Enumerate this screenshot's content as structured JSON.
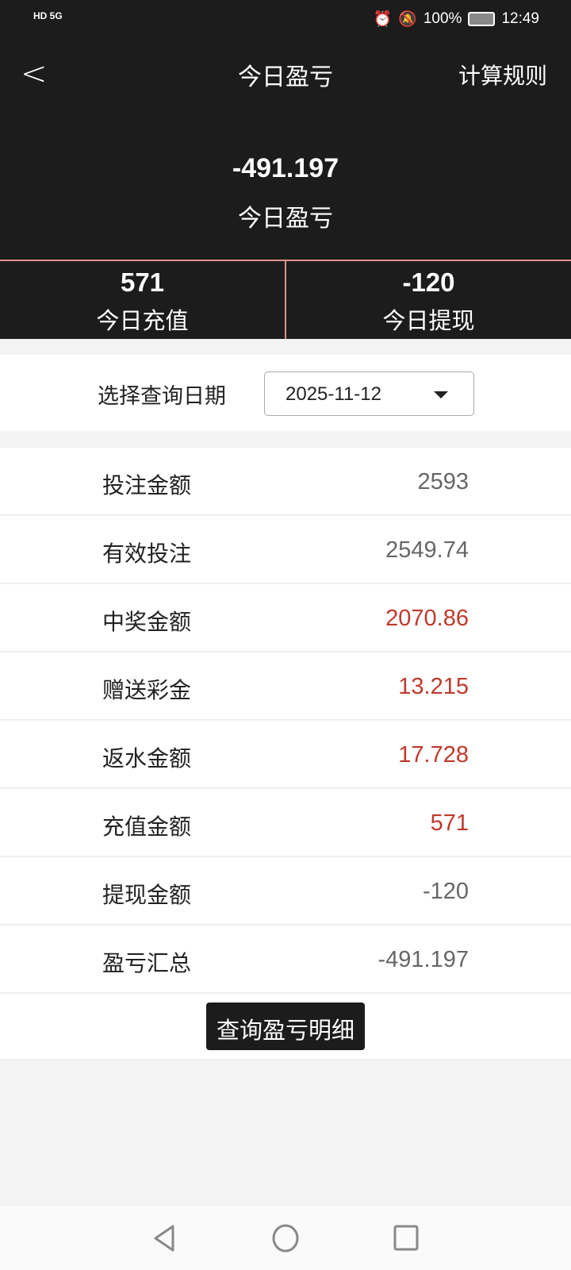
{
  "status_bar": {
    "left": "HD 5G",
    "battery": "100%",
    "time": "12:49"
  },
  "header": {
    "title": "今日盈亏",
    "rules_label": "计算规则"
  },
  "summary": {
    "value": "-491.197",
    "label": "今日盈亏"
  },
  "split": [
    {
      "value": "571",
      "label": "今日充值"
    },
    {
      "value": "-120",
      "label": "今日提现"
    }
  ],
  "date": {
    "label": "选择查询日期",
    "value": "2025-11-12"
  },
  "rows": [
    {
      "label": "投注金额",
      "value": "2593"
    },
    {
      "label": "有效投注",
      "value": "2549.74"
    },
    {
      "label": "中奖金额",
      "value": "2070.86"
    },
    {
      "label": "赠送彩金",
      "value": "13.215"
    },
    {
      "label": "返水金额",
      "value": "17.728"
    },
    {
      "label": "充值金额",
      "value": "571"
    },
    {
      "label": "提现金额",
      "value": "-120"
    },
    {
      "label": "盈亏汇总",
      "value": "-491.197"
    }
  ],
  "detail_button": "查询盈亏明细",
  "colors": {
    "header": "#1c1c1c",
    "accent_red": "#c0392b",
    "divider": "#e0938a"
  }
}
